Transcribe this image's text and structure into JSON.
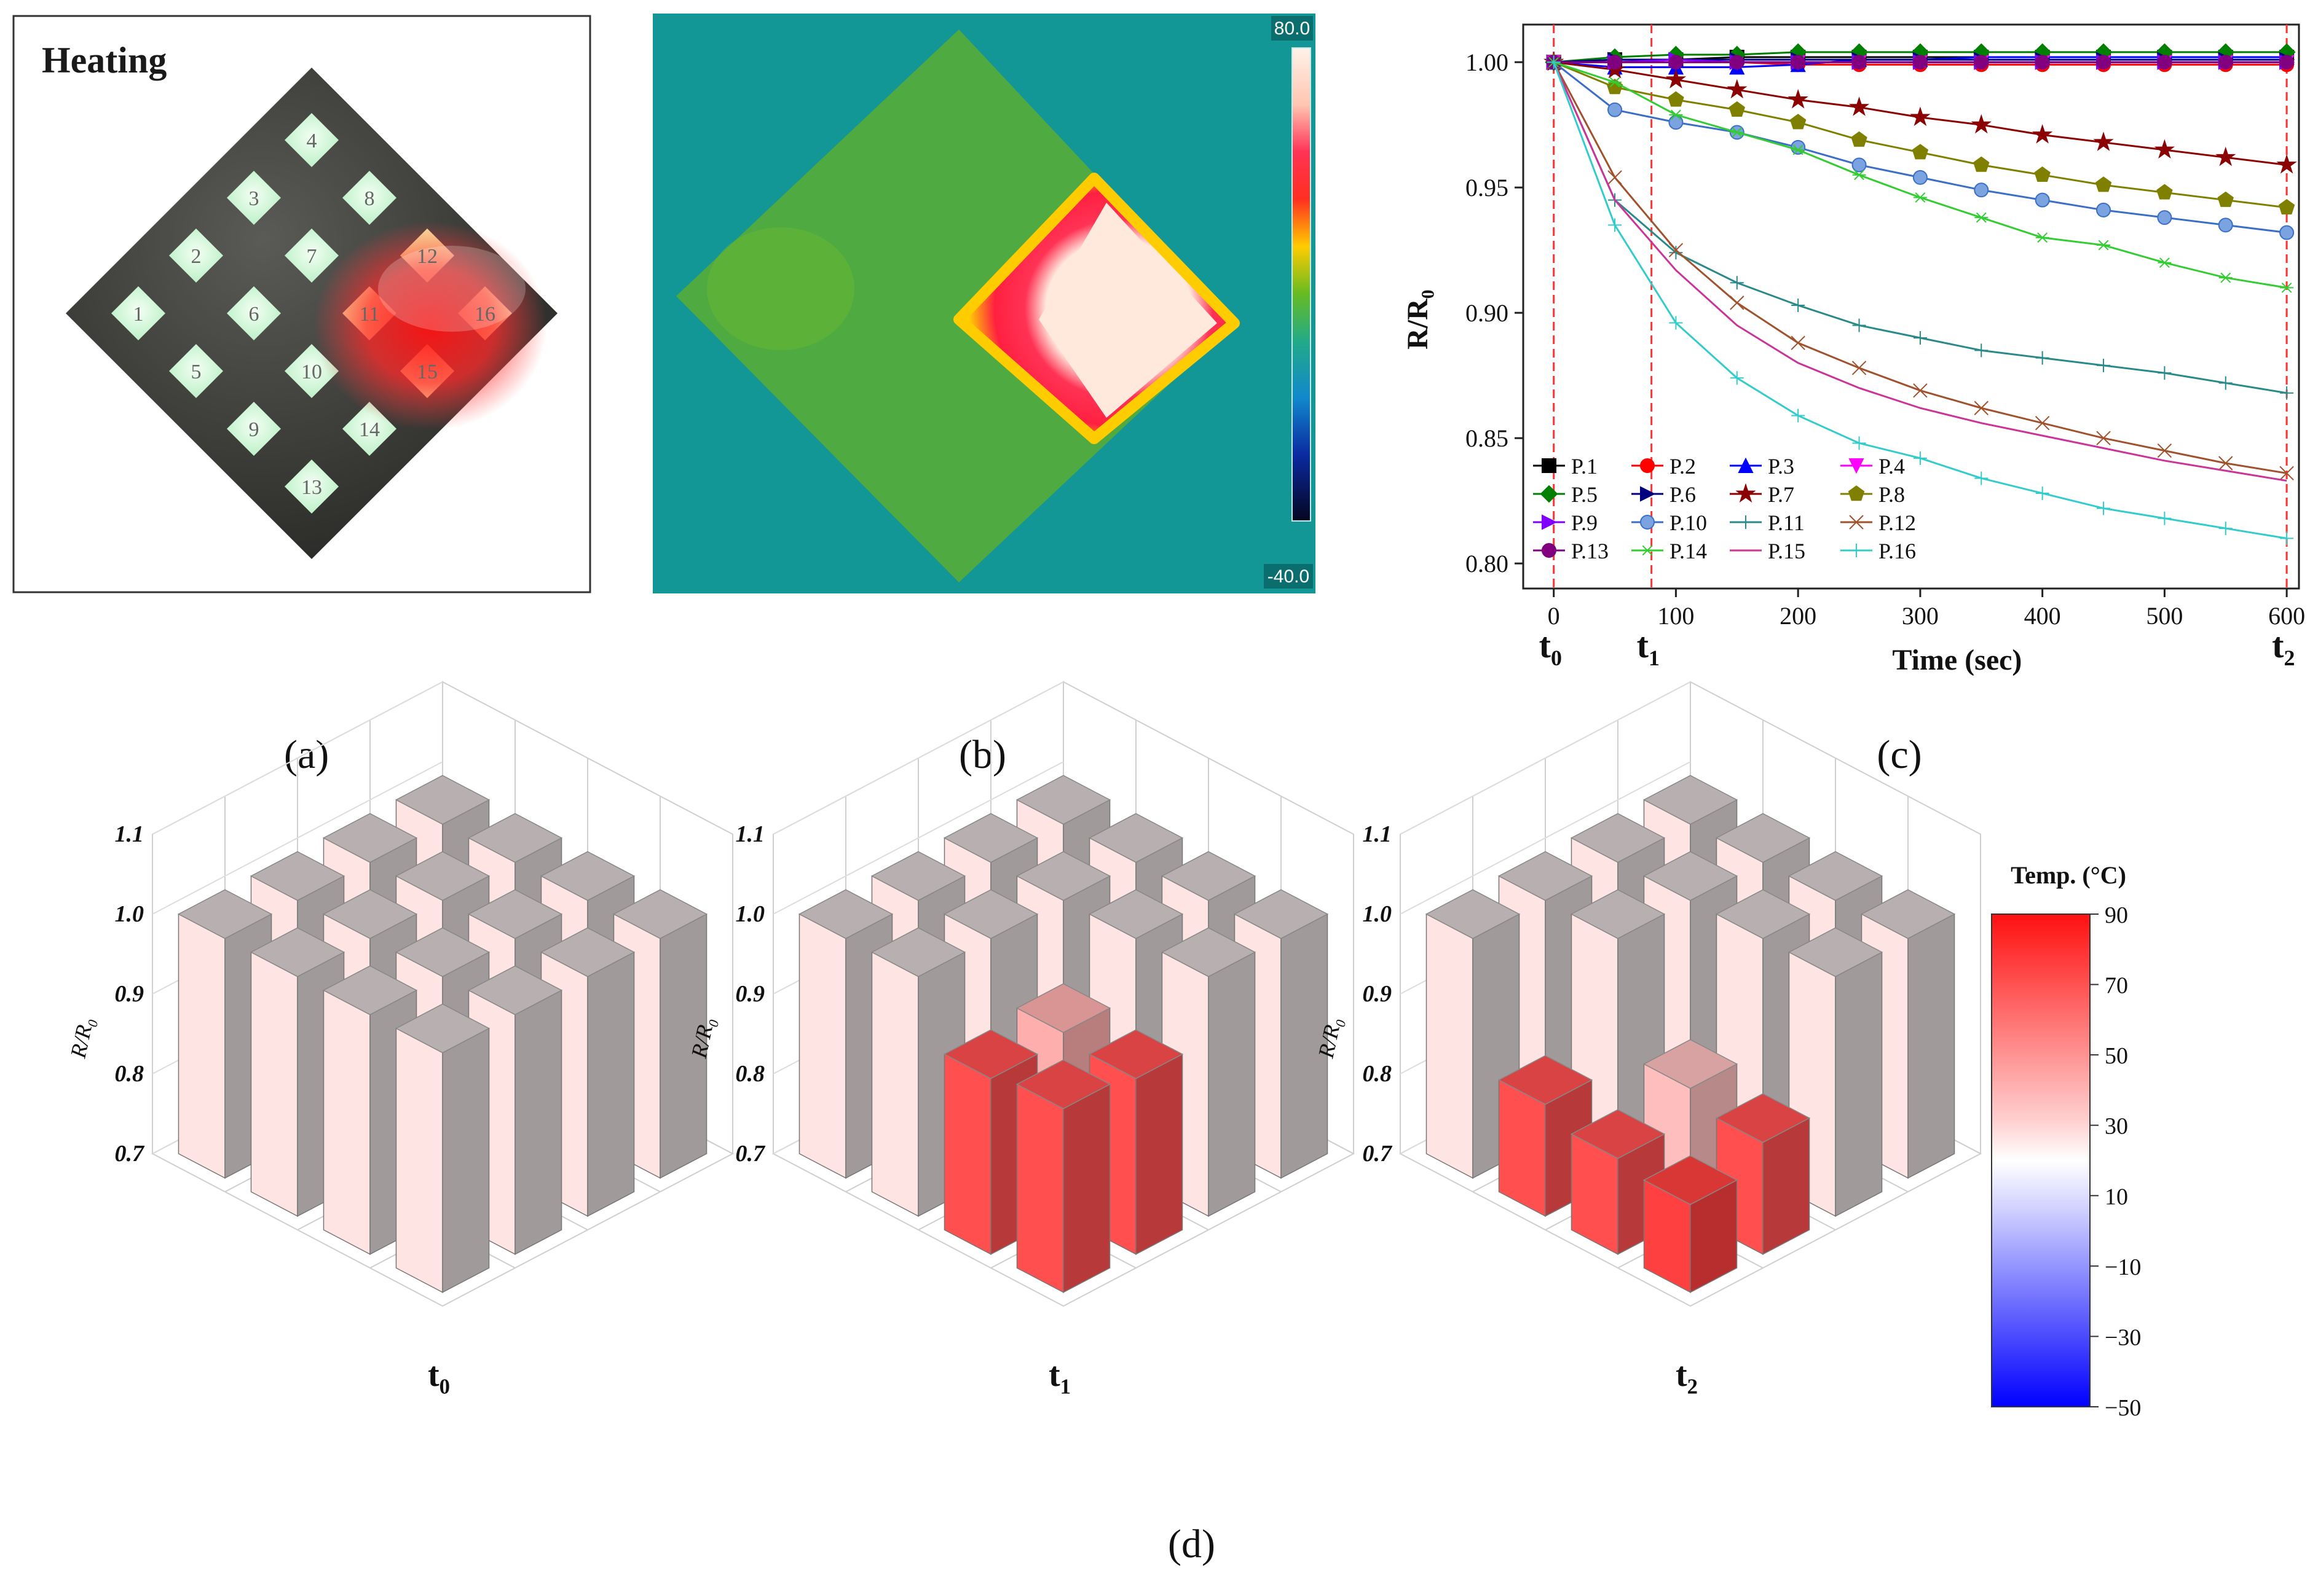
{
  "panel_a": {
    "title": "Heating",
    "caption": "(a)",
    "pads": [
      "1",
      "2",
      "3",
      "4",
      "5",
      "6",
      "7",
      "8",
      "9",
      "10",
      "11",
      "12",
      "13",
      "14",
      "15",
      "16"
    ]
  },
  "panel_b": {
    "caption": "(b)",
    "colorbar_max": "80.0",
    "colorbar_min": "-40.0"
  },
  "panel_d": {
    "caption": "(d)",
    "colorbar_title": "Temp. (°C)",
    "colorbar_ticks": [
      "90",
      "70",
      "50",
      "30",
      "10",
      "−10",
      "−30",
      "−50"
    ],
    "colorbar_range": [
      -50,
      90
    ],
    "colors": {
      "hot": "#ff2020",
      "warm": "#ffffff",
      "cold": "#1010ff"
    },
    "ylabel": "R/R",
    "ylabel_sub": "0",
    "yticks": [
      "0.7",
      "0.8",
      "0.9",
      "1.0",
      "1.1"
    ]
  },
  "chart_data": [
    {
      "type": "line",
      "caption": "(c)",
      "xlabel": "Time (sec)",
      "ylabel": "R/R",
      "ylabel_sub": "0",
      "xlim": [
        -25,
        610
      ],
      "ylim": [
        0.79,
        1.015
      ],
      "xticks": [
        "0",
        "100",
        "200",
        "300",
        "400",
        "500",
        "600"
      ],
      "yticks": [
        "0.80",
        "0.85",
        "0.90",
        "0.95",
        "1.00"
      ],
      "markers": [
        {
          "t": "t",
          "sub": "0",
          "x": 0
        },
        {
          "t": "t",
          "sub": "1",
          "x": 80
        },
        {
          "t": "t",
          "sub": "2",
          "x": 600
        }
      ],
      "x": [
        0,
        50,
        100,
        150,
        200,
        250,
        300,
        350,
        400,
        450,
        500,
        550,
        600
      ],
      "series": [
        {
          "name": "P.1",
          "color": "#000000",
          "marker": "square",
          "values": [
            1.0,
            1.001,
            1.001,
            1.002,
            1.002,
            1.002,
            1.002,
            1.002,
            1.002,
            1.002,
            1.002,
            1.002,
            1.002
          ]
        },
        {
          "name": "P.2",
          "color": "#ff0000",
          "marker": "circle",
          "values": [
            1.0,
            1.0,
            1.0,
            1.0,
            0.999,
            0.999,
            0.999,
            0.999,
            0.999,
            0.999,
            0.999,
            0.999,
            0.999
          ]
        },
        {
          "name": "P.3",
          "color": "#0000ff",
          "marker": "triangle",
          "values": [
            1.0,
            0.998,
            0.998,
            0.998,
            0.999,
            1.001,
            1.001,
            1.002,
            1.002,
            1.002,
            1.002,
            1.002,
            1.002
          ]
        },
        {
          "name": "P.4",
          "color": "#ff00ff",
          "marker": "tridown",
          "values": [
            1.0,
            1.0,
            1.0,
            1.0,
            1.0,
            1.0,
            1.0,
            1.0,
            1.0,
            1.0,
            1.0,
            1.0,
            1.0
          ]
        },
        {
          "name": "P.5",
          "color": "#008000",
          "marker": "diamond",
          "values": [
            1.0,
            1.002,
            1.003,
            1.003,
            1.004,
            1.004,
            1.004,
            1.004,
            1.004,
            1.004,
            1.004,
            1.004,
            1.004
          ]
        },
        {
          "name": "P.6",
          "color": "#000080",
          "marker": "triright",
          "values": [
            1.0,
            1.001,
            1.001,
            1.001,
            1.001,
            1.001,
            1.001,
            1.001,
            1.001,
            1.001,
            1.001,
            1.001,
            1.001
          ]
        },
        {
          "name": "P.7",
          "color": "#8b0000",
          "marker": "star",
          "values": [
            1.0,
            0.997,
            0.993,
            0.989,
            0.985,
            0.982,
            0.978,
            0.975,
            0.971,
            0.968,
            0.965,
            0.962,
            0.959
          ]
        },
        {
          "name": "P.8",
          "color": "#808000",
          "marker": "pentagon",
          "values": [
            1.0,
            0.99,
            0.985,
            0.981,
            0.976,
            0.969,
            0.964,
            0.959,
            0.955,
            0.951,
            0.948,
            0.945,
            0.942
          ]
        },
        {
          "name": "P.9",
          "color": "#8000ff",
          "marker": "triright",
          "values": [
            1.0,
            1.0,
            1.001,
            1.0,
            1.0,
            1.0,
            1.0,
            1.0,
            1.0,
            1.0,
            1.0,
            1.0,
            1.0
          ]
        },
        {
          "name": "P.10",
          "color": "#3b6fc7",
          "marker": "hexagon",
          "values": [
            1.0,
            0.981,
            0.976,
            0.972,
            0.966,
            0.959,
            0.954,
            0.949,
            0.945,
            0.941,
            0.938,
            0.935,
            0.932
          ]
        },
        {
          "name": "P.11",
          "color": "#2a8a8a",
          "marker": "plus",
          "values": [
            1.0,
            0.945,
            0.924,
            0.912,
            0.903,
            0.895,
            0.89,
            0.885,
            0.882,
            0.879,
            0.876,
            0.872,
            0.868
          ]
        },
        {
          "name": "P.12",
          "color": "#a0522d",
          "marker": "x",
          "values": [
            1.0,
            0.954,
            0.925,
            0.904,
            0.888,
            0.878,
            0.869,
            0.862,
            0.856,
            0.85,
            0.845,
            0.84,
            0.836
          ]
        },
        {
          "name": "P.13",
          "color": "#800080",
          "marker": "circle",
          "values": [
            1.0,
            1.0,
            1.0,
            1.0,
            1.0,
            1.0,
            1.0,
            1.0,
            1.0,
            1.0,
            1.0,
            1.0,
            1.0
          ]
        },
        {
          "name": "P.14",
          "color": "#33cc33",
          "marker": "asterisk",
          "values": [
            1.0,
            0.992,
            0.979,
            0.972,
            0.965,
            0.955,
            0.946,
            0.938,
            0.93,
            0.927,
            0.92,
            0.914,
            0.91
          ]
        },
        {
          "name": "P.15",
          "color": "#cc3399",
          "marker": "none",
          "values": [
            1.0,
            0.945,
            0.917,
            0.895,
            0.88,
            0.87,
            0.862,
            0.856,
            0.851,
            0.846,
            0.841,
            0.837,
            0.833
          ]
        },
        {
          "name": "P.16",
          "color": "#33cccc",
          "marker": "plus",
          "values": [
            1.0,
            0.935,
            0.896,
            0.874,
            0.859,
            0.848,
            0.842,
            0.834,
            0.828,
            0.822,
            0.818,
            0.814,
            0.81
          ]
        }
      ]
    },
    {
      "type": "bar3d",
      "label": "t",
      "label_sub": "0",
      "zlim": [
        0.7,
        1.1
      ],
      "values": [
        [
          1.0,
          1.0,
          1.0,
          1.0
        ],
        [
          1.0,
          1.0,
          1.0,
          1.0
        ],
        [
          1.0,
          1.0,
          1.0,
          1.0
        ],
        [
          1.0,
          1.0,
          1.0,
          1.0
        ]
      ],
      "temps": [
        [
          25,
          25,
          25,
          25
        ],
        [
          25,
          25,
          25,
          25
        ],
        [
          25,
          25,
          25,
          25
        ],
        [
          25,
          25,
          25,
          25
        ]
      ]
    },
    {
      "type": "bar3d",
      "label": "t",
      "label_sub": "1",
      "zlim": [
        0.7,
        1.1
      ],
      "values": [
        [
          1.0,
          1.0,
          1.0,
          1.0
        ],
        [
          1.0,
          1.0,
          1.0,
          1.0
        ],
        [
          1.0,
          1.0,
          0.93,
          0.92
        ],
        [
          1.0,
          1.0,
          0.92,
          0.93
        ]
      ],
      "temps": [
        [
          25,
          25,
          25,
          25
        ],
        [
          25,
          25,
          25,
          25
        ],
        [
          25,
          25,
          45,
          75
        ],
        [
          25,
          25,
          75,
          75
        ]
      ]
    },
    {
      "type": "bar3d",
      "label": "t",
      "label_sub": "2",
      "zlim": [
        0.7,
        1.1
      ],
      "values": [
        [
          1.0,
          1.0,
          1.0,
          1.0
        ],
        [
          1.0,
          1.0,
          1.0,
          1.0
        ],
        [
          1.0,
          1.0,
          0.86,
          0.84
        ],
        [
          1.0,
          0.84,
          0.82,
          0.81
        ]
      ],
      "temps": [
        [
          25,
          25,
          25,
          25
        ],
        [
          25,
          25,
          25,
          25
        ],
        [
          25,
          25,
          40,
          75
        ],
        [
          25,
          75,
          75,
          80
        ]
      ]
    }
  ]
}
